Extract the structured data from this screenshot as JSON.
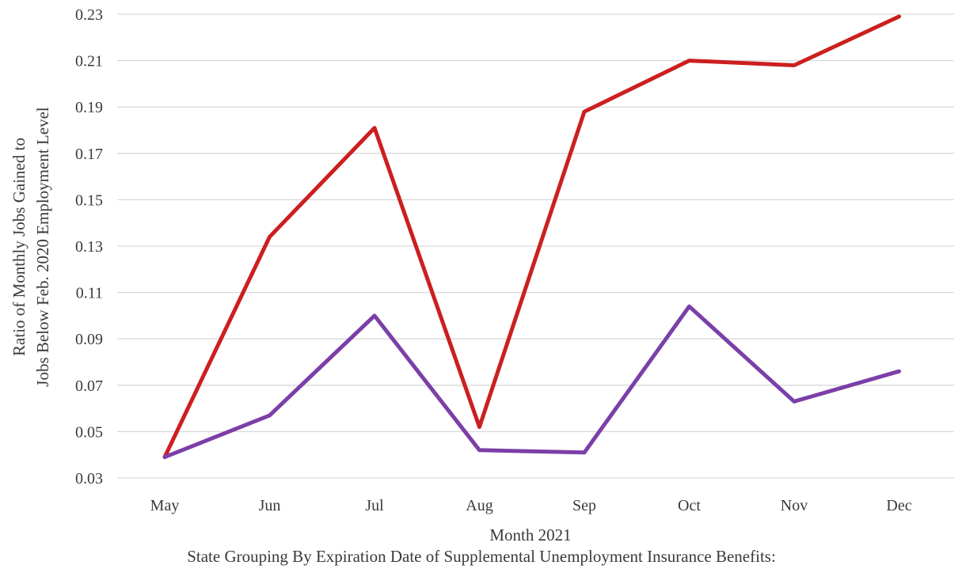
{
  "chart_data": {
    "type": "line",
    "title": "",
    "xlabel": "Month 2021",
    "ylabel_lines": [
      "Ratio of Monthly Jobs Gained to",
      "Jobs Below Feb. 2020 Employment Level"
    ],
    "legend_title": "State Grouping By Expiration Date of Supplemental Unemployment Insurance Benefits:",
    "categories": [
      "May",
      "Jun",
      "Jul",
      "Aug",
      "Sep",
      "Oct",
      "Nov",
      "Dec"
    ],
    "ylim": [
      0.03,
      0.23
    ],
    "yticks": [
      "0.03",
      "0.05",
      "0.07",
      "0.09",
      "0.11",
      "0.13",
      "0.15",
      "0.17",
      "0.19",
      "0.21",
      "0.23"
    ],
    "grid": true,
    "series": [
      {
        "color": "#cc1f1f",
        "values": [
          0.039,
          0.134,
          0.181,
          0.052,
          0.188,
          0.21,
          0.208,
          0.229
        ]
      },
      {
        "color": "#7b3fa8",
        "values": [
          0.039,
          0.057,
          0.1,
          0.042,
          0.041,
          0.104,
          0.063,
          0.076
        ]
      }
    ]
  }
}
